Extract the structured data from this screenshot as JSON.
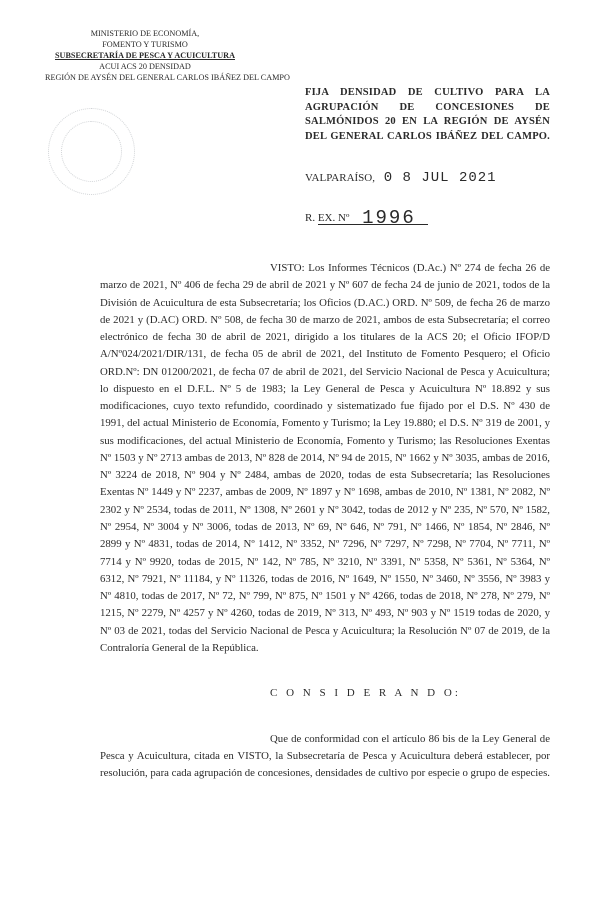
{
  "letterhead": {
    "line1": "MINISTERIO DE ECONOMÍA,",
    "line2": "FOMENTO Y TURISMO",
    "line3": "SUBSECRETARÍA DE PESCA Y ACUICULTURA",
    "line4": "ACUI ACS 20 DENSIDAD",
    "line5": "REGIÓN DE AYSÉN DEL GENERAL CARLOS IBÁÑEZ DEL CAMPO"
  },
  "title": "FIJA DENSIDAD DE CULTIVO PARA LA AGRUPACIÓN DE CONCESIONES DE SALMÓNIDOS 20 EN LA REGIÓN DE AYSÉN DEL GENERAL CARLOS IBÁÑEZ DEL CAMPO.",
  "city": "VALPARAÍSO,",
  "date_stamp": "0 8 JUL 2021",
  "rex_label": "R. EX. Nº",
  "rex_number": "1996",
  "visto_lead": "VISTO: Los Informes Técnicos (D.Ac.) Nº 274",
  "visto_body": "de fecha 26 de marzo de 2021, Nº 406 de fecha 29 de abril de 2021 y Nº 607 de fecha 24 de junio de 2021, todos de la División de Acuicultura de esta Subsecretaría; los Oficios (D.AC.) ORD. Nº 509, de fecha 26 de marzo de 2021 y (D.AC) ORD. Nº 508, de fecha 30 de marzo de 2021, ambos de esta Subsecretaría; el correo electrónico de fecha 30 de abril de 2021, dirigido a los titulares de la ACS 20; el Oficio IFOP/D A/Nº024/2021/DIR/131, de fecha 05 de abril de 2021, del Instituto de Fomento Pesquero; el Oficio ORD.Nº: DN   01200/2021, de fecha 07 de abril de 2021, del Servicio Nacional de Pesca y Acuicultura; lo dispuesto en el D.F.L. Nº 5 de 1983; la Ley General de Pesca y Acuicultura Nº 18.892 y sus modificaciones, cuyo texto refundido, coordinado y sistematizado fue fijado por el D.S. Nº 430 de 1991, del actual Ministerio de Economía, Fomento y Turismo; la Ley 19.880; el D.S. Nº 319 de 2001, y sus modificaciones, del actual Ministerio de Economía, Fomento y Turismo; las Resoluciones Exentas Nº 1503 y Nº 2713 ambas de 2013, Nº 828 de 2014, Nº 94 de 2015, Nº 1662 y Nº 3035, ambas de 2016, Nº 3224 de 2018, Nº 904 y Nº 2484, ambas de 2020, todas de esta Subsecretaría; las Resoluciones Exentas Nº 1449 y Nº 2237, ambas de 2009, Nº 1897 y Nº 1698, ambas de 2010, Nº 1381, Nº 2082, Nº 2302 y Nº 2534, todas de 2011, Nº 1308, Nº 2601 y Nº 3042, todas de 2012 y Nº 235, Nº 570, Nº 1582, Nº 2954, Nº 3004 y Nº 3006, todas de 2013, Nº 69, Nº 646, Nº 791, Nº 1466, Nº 1854, Nº 2846, Nº 2899 y Nº 4831, todas de 2014, Nº 1412, Nº 3352, Nº 7296, Nº 7297, Nº 7298, Nº 7704, Nº 7711, Nº 7714 y Nº 9920, todas de 2015, Nº 142, Nº 785, Nº 3210, Nº 3391, Nº 5358, Nº 5361, Nº 5364, Nº 6312, Nº 7921, Nº 11184, y Nº 11326, todas de 2016, Nº 1649, Nº 1550, Nº 3460, Nº 3556, Nº 3983 y Nº 4810, todas de 2017, Nº 72, Nº 799, Nº 875, Nº 1501 y Nº 4266, todas de 2018, Nº 278, Nº 279, Nº 1215, Nº 2279, Nº 4257 y Nº 4260, todas de 2019, Nº 313, Nº 493, Nº 903 y Nº 1519 todas de 2020, y Nº 03 de 2021, todas del Servicio Nacional de Pesca y Acuicultura; la Resolución Nº 07 de 2019, de la Contraloría General de la República.",
  "considerando": "C O N S I D E R A N D O:",
  "para2": "Que de conformidad con el artículo 86 bis de la Ley General de Pesca y Acuicultura, citada en VISTO, la Subsecretaría de Pesca y Acuicultura deberá establecer, por resolución, para cada agrupación de concesiones, densidades de cultivo por especie o grupo de especies."
}
